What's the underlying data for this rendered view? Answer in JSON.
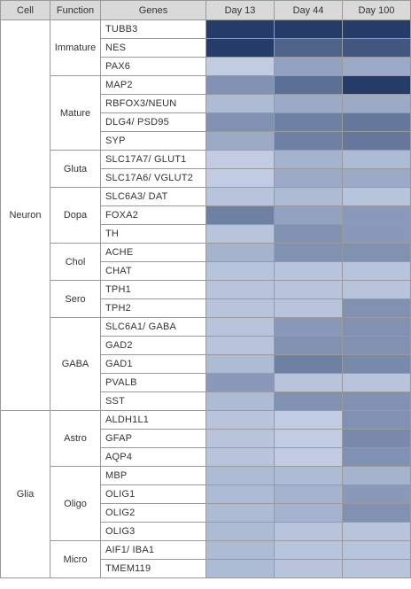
{
  "chart_data": {
    "type": "heatmap",
    "headers": {
      "cell": "Cell",
      "function": "Function",
      "genes": "Genes"
    },
    "columns": [
      "Day 13",
      "Day 44",
      "Day 100"
    ],
    "color_scale": [
      "#d3ddf1",
      "#1c3464"
    ],
    "value_range": [
      0,
      1
    ],
    "cells": [
      {
        "name": "Neuron",
        "functions": [
          {
            "name": "Immature",
            "genes": [
              {
                "gene": "TUBB3",
                "values": [
                  0.95,
                  0.95,
                  0.95
                ]
              },
              {
                "gene": "NES",
                "values": [
                  0.95,
                  0.72,
                  0.8
                ]
              },
              {
                "gene": "PAX6",
                "values": [
                  0.1,
                  0.35,
                  0.3
                ]
              }
            ]
          },
          {
            "name": "Mature",
            "genes": [
              {
                "gene": "MAP2",
                "values": [
                  0.45,
                  0.65,
                  0.95
                ]
              },
              {
                "gene": "RBFOX3/NEUN",
                "values": [
                  0.2,
                  0.3,
                  0.3
                ]
              },
              {
                "gene": "DLG4/ PSD95",
                "values": [
                  0.45,
                  0.55,
                  0.6
                ]
              },
              {
                "gene": "SYP",
                "values": [
                  0.3,
                  0.55,
                  0.6
                ]
              }
            ]
          },
          {
            "name": "Gluta",
            "genes": [
              {
                "gene": "SLC17A7/ GLUT1",
                "values": [
                  0.1,
                  0.25,
                  0.2
                ]
              },
              {
                "gene": "SLC17A6/ VGLUT2",
                "values": [
                  0.1,
                  0.3,
                  0.3
                ]
              }
            ]
          },
          {
            "name": "Dopa",
            "genes": [
              {
                "gene": "SLC6A3/ DAT",
                "values": [
                  0.15,
                  0.2,
                  0.15
                ]
              },
              {
                "gene": "FOXA2",
                "values": [
                  0.55,
                  0.35,
                  0.4
                ]
              },
              {
                "gene": "TH",
                "values": [
                  0.15,
                  0.45,
                  0.4
                ]
              }
            ]
          },
          {
            "name": "Chol",
            "genes": [
              {
                "gene": "ACHE",
                "values": [
                  0.25,
                  0.45,
                  0.45
                ]
              },
              {
                "gene": "CHAT",
                "values": [
                  0.15,
                  0.15,
                  0.15
                ]
              }
            ]
          },
          {
            "name": "Sero",
            "genes": [
              {
                "gene": "TPH1",
                "values": [
                  0.15,
                  0.15,
                  0.15
                ]
              },
              {
                "gene": "TPH2",
                "values": [
                  0.15,
                  0.15,
                  0.45
                ]
              }
            ]
          },
          {
            "name": "GABA",
            "genes": [
              {
                "gene": "SLC6A1/ GABA",
                "values": [
                  0.15,
                  0.4,
                  0.45
                ]
              },
              {
                "gene": "GAD2",
                "values": [
                  0.15,
                  0.45,
                  0.45
                ]
              },
              {
                "gene": "GAD1",
                "values": [
                  0.2,
                  0.55,
                  0.5
                ]
              },
              {
                "gene": "PVALB",
                "values": [
                  0.4,
                  0.15,
                  0.15
                ]
              },
              {
                "gene": "SST",
                "values": [
                  0.2,
                  0.45,
                  0.45
                ]
              }
            ]
          }
        ]
      },
      {
        "name": "Glia",
        "functions": [
          {
            "name": "Astro",
            "genes": [
              {
                "gene": "ALDH1L1",
                "values": [
                  0.15,
                  0.1,
                  0.45
                ]
              },
              {
                "gene": "GFAP",
                "values": [
                  0.15,
                  0.1,
                  0.5
                ]
              },
              {
                "gene": "AQP4",
                "values": [
                  0.15,
                  0.1,
                  0.45
                ]
              }
            ]
          },
          {
            "name": "Oligo",
            "genes": [
              {
                "gene": "MBP",
                "values": [
                  0.2,
                  0.2,
                  0.25
                ]
              },
              {
                "gene": "OLIG1",
                "values": [
                  0.2,
                  0.25,
                  0.4
                ]
              },
              {
                "gene": "OLIG2",
                "values": [
                  0.2,
                  0.25,
                  0.45
                ]
              },
              {
                "gene": "OLIG3",
                "values": [
                  0.2,
                  0.15,
                  0.15
                ]
              }
            ]
          },
          {
            "name": "Micro",
            "genes": [
              {
                "gene": "AIF1/ IBA1",
                "values": [
                  0.2,
                  0.15,
                  0.15
                ]
              },
              {
                "gene": "TMEM119",
                "values": [
                  0.2,
                  0.15,
                  0.15
                ]
              }
            ]
          }
        ]
      }
    ]
  }
}
